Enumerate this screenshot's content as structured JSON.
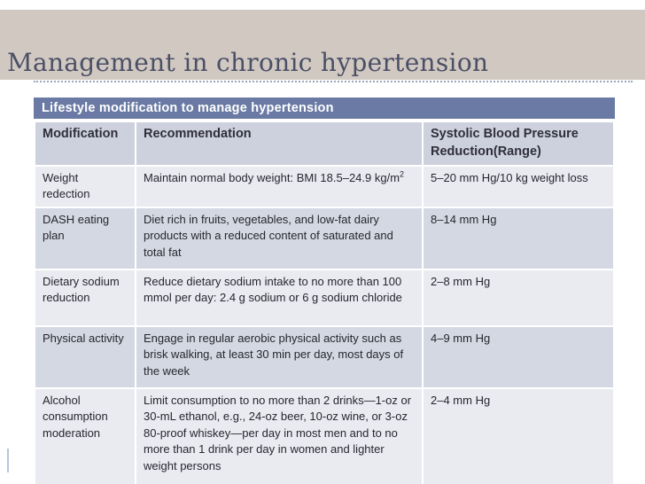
{
  "slide": {
    "title": "Management in chronic hypertension",
    "table": {
      "title": "Lifestyle modification to manage hypertension",
      "columns": [
        "Modification",
        "Recommendation",
        "Systolic Blood Pressure Reduction(Range)"
      ],
      "rows": [
        {
          "modification": "Weight redection",
          "recommendation": "Maintain normal body weight: BMI 18.5–24.9 kg/m",
          "recommendation_sup": "2",
          "reduction": "5–20 mm Hg/10 kg weight loss"
        },
        {
          "modification": "DASH eating plan",
          "recommendation": "Diet rich in fruits, vegetables, and low-fat dairy products with a reduced content of saturated and total fat",
          "reduction": "8–14 mm Hg"
        },
        {
          "modification": "Dietary sodium reduction",
          "recommendation": "Reduce dietary sodium intake to no more than 100 mmol per day: 2.4 g sodium or 6 g sodium chloride",
          "reduction": "2–8 mm Hg"
        },
        {
          "modification": "Physical activity",
          "recommendation": "Engage in regular aerobic physical activity such as brisk walking, at least 30 min per day, most days of the week",
          "reduction": "4–9 mm Hg"
        },
        {
          "modification": "Alcohol consumption moderation",
          "recommendation": "Limit consumption to no more than 2 drinks—1-oz or 30-mL ethanol, e.g., 24-oz beer, 10-oz wine, or 3-oz 80-proof whiskey—per day in most men and to no more than 1 drink per day in women and lighter weight persons",
          "reduction": "2–4 mm Hg"
        }
      ]
    },
    "colors": {
      "title_band": "#d1c8c2",
      "title_text": "#4a5065",
      "table_header_bar": "#6a7aa4",
      "column_header_bg": "#cdd1dd",
      "row_light": "#e9ebf0",
      "row_dark": "#d4d8e2",
      "body_text": "#27272f"
    }
  }
}
